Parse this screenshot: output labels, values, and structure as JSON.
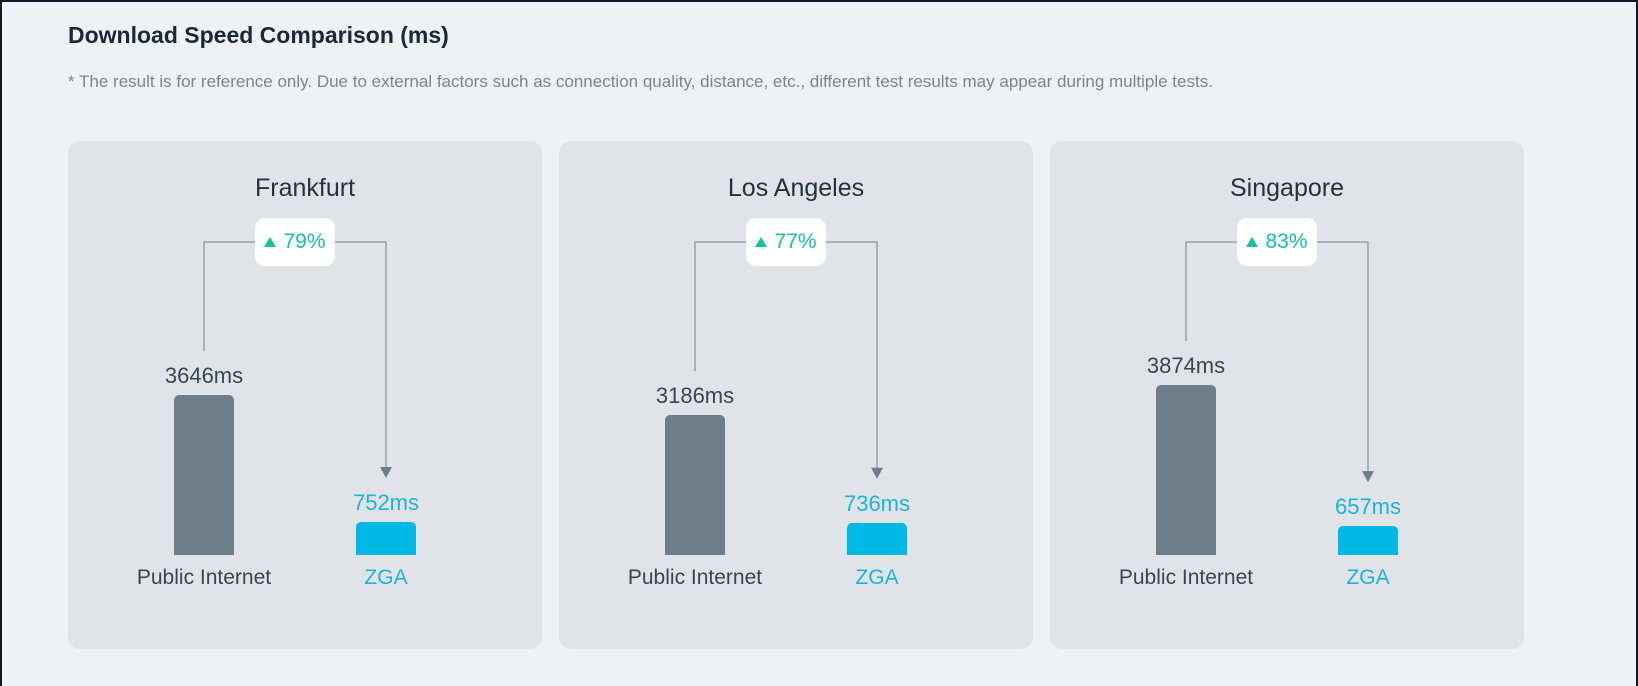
{
  "header": {
    "title": "Download Speed Comparison (ms)",
    "note": "* The result is for reference only. Due to external factors such as connection quality, distance, etc., different test results may appear during multiple tests."
  },
  "colors": {
    "public_internet": "#6e7d8a",
    "zga": "#00b8e6",
    "improvement": "#14c39a"
  },
  "chart_data": [
    {
      "type": "bar",
      "title": "Frankfurt",
      "categories": [
        "Public Internet",
        "ZGA"
      ],
      "values": [
        3646,
        752
      ],
      "value_labels": [
        "3646ms",
        "752ms"
      ],
      "improvement": "79%",
      "ylim": [
        0,
        4000
      ]
    },
    {
      "type": "bar",
      "title": "Los Angeles",
      "categories": [
        "Public Internet",
        "ZGA"
      ],
      "values": [
        3186,
        736
      ],
      "value_labels": [
        "3186ms",
        "736ms"
      ],
      "improvement": "77%",
      "ylim": [
        0,
        4000
      ]
    },
    {
      "type": "bar",
      "title": "Singapore",
      "categories": [
        "Public Internet",
        "ZGA"
      ],
      "values": [
        3874,
        657
      ],
      "value_labels": [
        "3874ms",
        "657ms"
      ],
      "improvement": "83%",
      "ylim": [
        0,
        4000
      ]
    }
  ]
}
